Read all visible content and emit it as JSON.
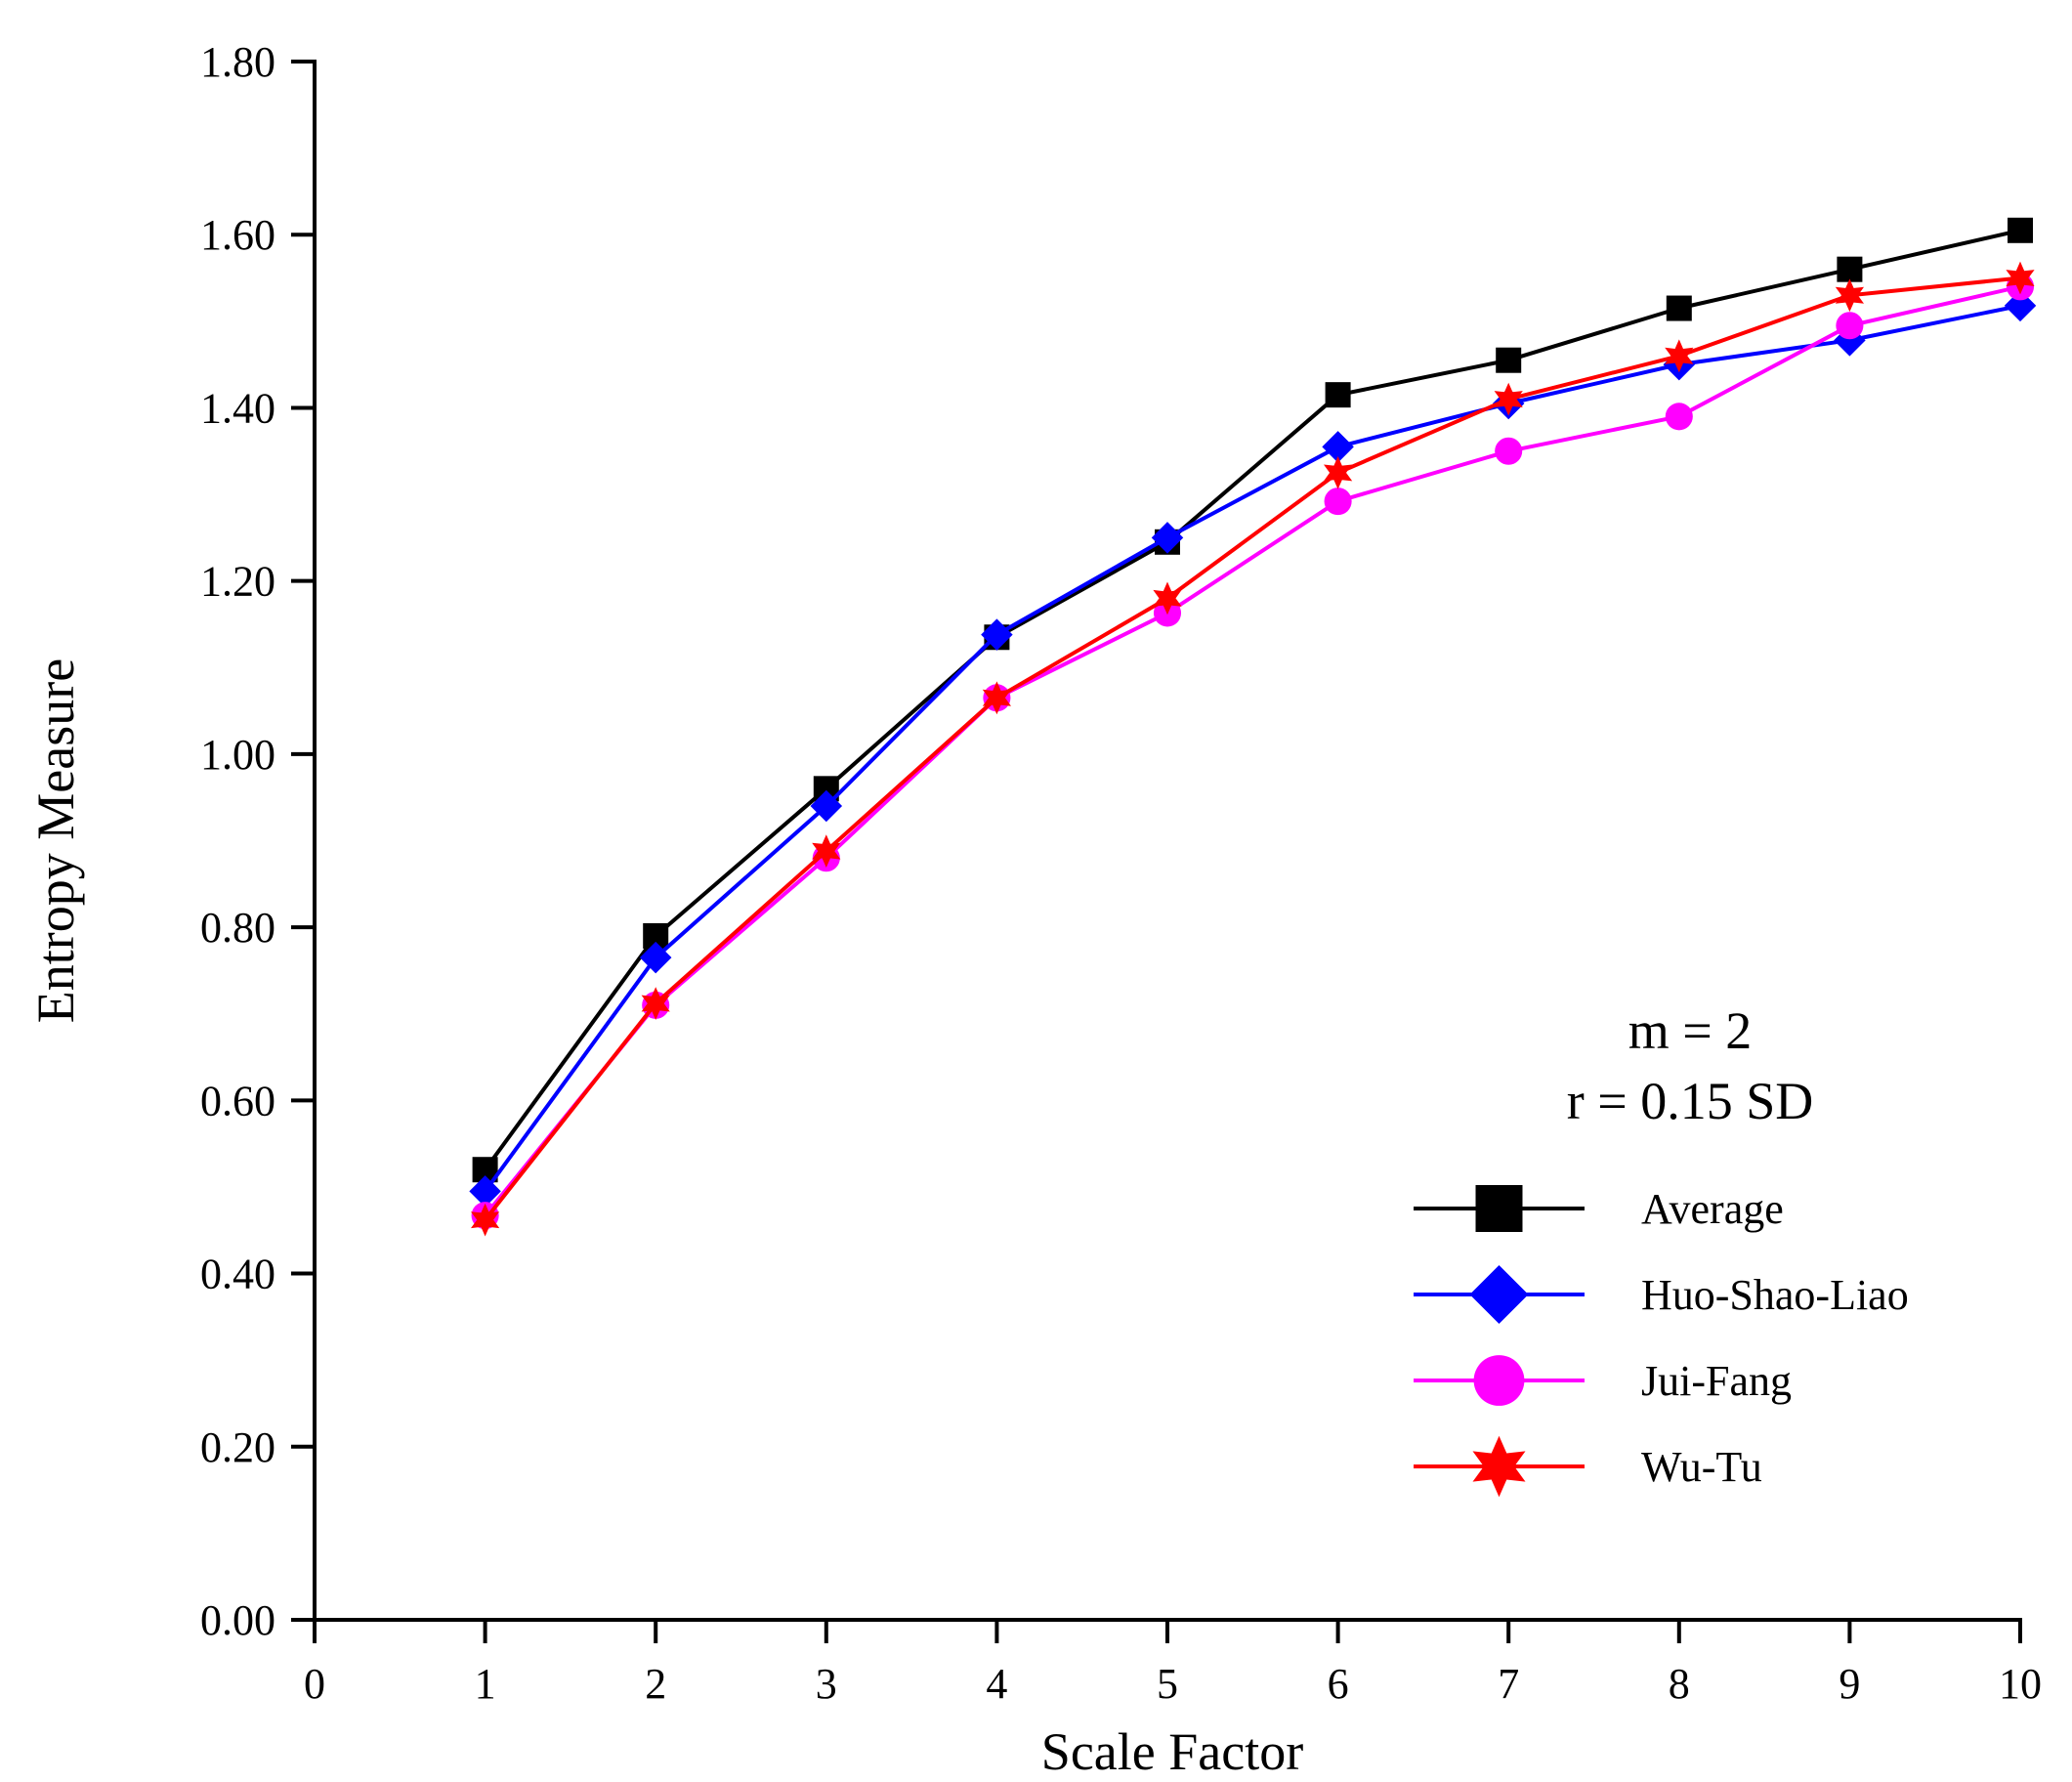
{
  "chart_data": {
    "type": "line",
    "xlabel": "Scale Factor",
    "ylabel": "Entropy Measure",
    "xlim": [
      0,
      10
    ],
    "ylim": [
      0,
      1.8
    ],
    "xticks": [
      "0",
      "1",
      "2",
      "3",
      "4",
      "5",
      "6",
      "7",
      "8",
      "9",
      "10"
    ],
    "yticks": [
      "0.00",
      "0.20",
      "0.40",
      "0.60",
      "0.80",
      "1.00",
      "1.20",
      "1.40",
      "1.60",
      "1.80"
    ],
    "x": [
      1,
      2,
      3,
      4,
      5,
      6,
      7,
      8,
      9,
      10
    ],
    "annotations": [
      "m = 2",
      "r = 0.15 SD"
    ],
    "legend_position": "bottom-right",
    "series": [
      {
        "name": "Average",
        "color": "#000000",
        "marker": "square",
        "values": [
          0.52,
          0.79,
          0.96,
          1.135,
          1.245,
          1.415,
          1.455,
          1.515,
          1.56,
          1.605
        ]
      },
      {
        "name": "Huo-Shao-Liao",
        "color": "#0000ff",
        "marker": "diamond",
        "values": [
          0.495,
          0.765,
          0.94,
          1.138,
          1.25,
          1.355,
          1.405,
          1.45,
          1.478,
          1.518
        ]
      },
      {
        "name": "Jui-Fang",
        "color": "#ff00ff",
        "marker": "circle",
        "values": [
          0.467,
          0.71,
          0.88,
          1.065,
          1.163,
          1.292,
          1.35,
          1.39,
          1.495,
          1.54
        ]
      },
      {
        "name": "Wu-Tu",
        "color": "#ff0000",
        "marker": "star",
        "values": [
          0.462,
          0.712,
          0.888,
          1.065,
          1.18,
          1.325,
          1.41,
          1.46,
          1.53,
          1.55
        ]
      }
    ]
  }
}
